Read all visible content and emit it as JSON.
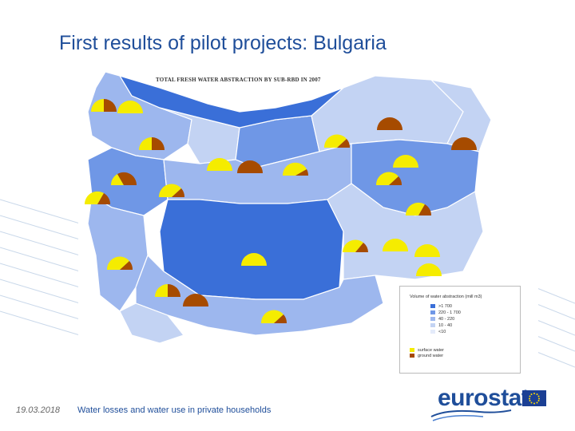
{
  "title": "First results of pilot projects: Bulgaria",
  "map": {
    "title": "TOTAL FRESH WATER ABSTRACTION BY SUB-RBD IN 2007",
    "legend": {
      "title": "Volume of water abstraction (mill m3)",
      "classes": [
        {
          "label": ">1 700",
          "color": "#3a6fd8"
        },
        {
          "label": "220   -   1 700",
          "color": "#6f97e6"
        },
        {
          "label": "40     -   220",
          "color": "#9db7ee"
        },
        {
          "label": "10     -   40",
          "color": "#c3d3f3"
        },
        {
          "label": "<10",
          "color": "#e4ebfa"
        }
      ],
      "water_types": [
        {
          "label": "surface water",
          "color": "#f5ec00"
        },
        {
          "label": "ground water",
          "color": "#a64b00"
        }
      ]
    }
  },
  "footer": {
    "date": "19.03.2018",
    "text": "Water losses and water use in private households"
  },
  "logo": {
    "text": "eurostat",
    "flag_color": "#1b3f94",
    "star_color": "#ffdd00"
  }
}
